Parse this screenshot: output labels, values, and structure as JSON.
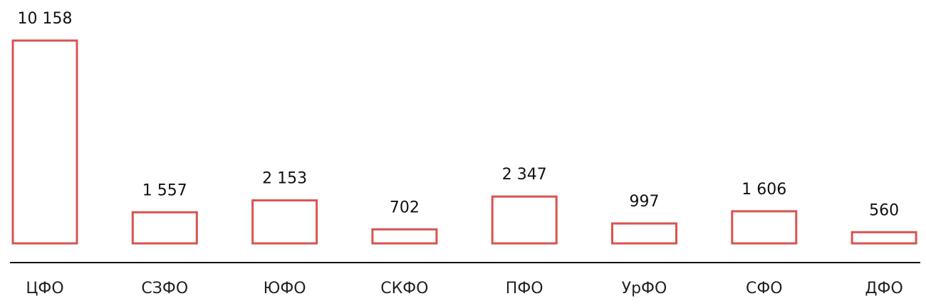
{
  "chart_data": {
    "type": "bar",
    "title": "",
    "xlabel": "",
    "ylabel": "",
    "categories": [
      "ЦФО",
      "СЗФО",
      "ЮФО",
      "СКФО",
      "ПФО",
      "УрФО",
      "СФО",
      "ДФО"
    ],
    "values": [
      10158,
      1557,
      2153,
      702,
      2347,
      997,
      1606,
      560
    ],
    "value_labels": [
      "10 158",
      "1 557",
      "2 153",
      "702",
      "2 347",
      "997",
      "1 606",
      "560"
    ],
    "ylim": [
      0,
      10158
    ],
    "grid": false,
    "legend": "none",
    "bar_style": "outlined",
    "colors": {
      "bar_stroke": "#d9534f",
      "baseline": "#111111",
      "text": "#111111"
    }
  }
}
